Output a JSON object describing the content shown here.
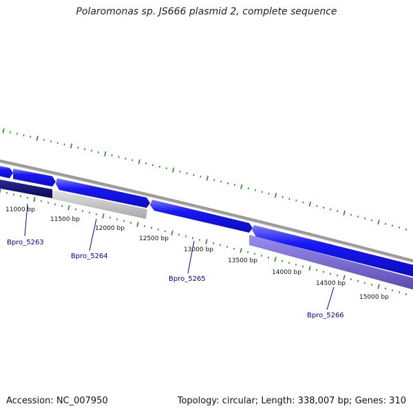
{
  "title": "Polaromonas sp. JS666 plasmid 2, complete sequence",
  "footer": {
    "accession": "Accession: NC_007950",
    "summary": "Topology: circular; Length: 338,007 bp; Genes: 310"
  },
  "colors": {
    "backbone": "#8a8a8a",
    "tick": "#1a8a1a",
    "gene_blue": "#1414f0",
    "gene_blue_light": "#6a6aff",
    "gene_navy": "#101070",
    "gene_gray": "#c4c4c4",
    "gene_purple": "#7a6ad8",
    "label": "#0000aa",
    "tick_text": "#111111"
  },
  "ticks": {
    "labels": [
      "11000 bp",
      "11500 bp",
      "12000 bp",
      "12500 bp",
      "13000 bp",
      "13500 bp",
      "14000 bp",
      "14500 bp",
      "15000 bp"
    ]
  },
  "genes": [
    {
      "name": "Bpro_5263",
      "track": "reverse",
      "color": "gene_navy"
    },
    {
      "name": "Bpro_5264",
      "track": "reverse",
      "color": "gene_gray"
    },
    {
      "name": "Bpro_5265",
      "track": "forward",
      "color": "gene_blue"
    },
    {
      "name": "Bpro_5266",
      "track": "reverse",
      "color": "gene_purple"
    }
  ]
}
